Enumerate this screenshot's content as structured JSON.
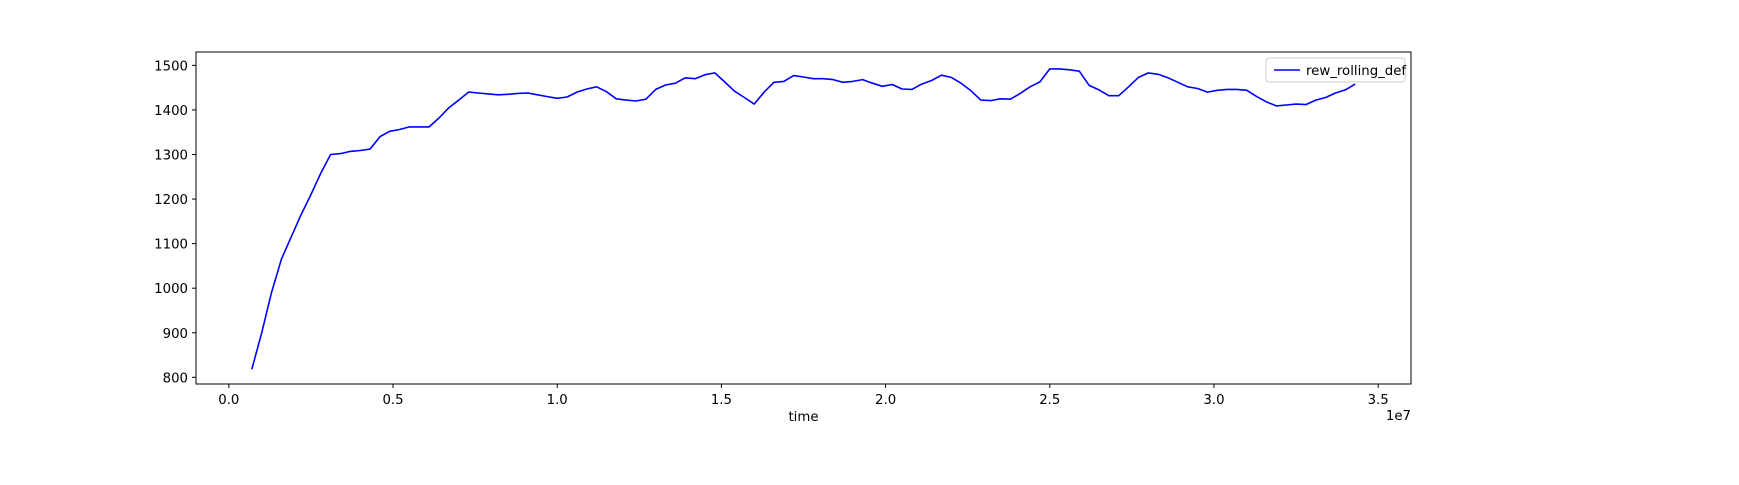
{
  "chart_data": {
    "type": "line",
    "title": "",
    "xlabel": "time",
    "ylabel": "",
    "x_offset_label": "1e7",
    "x_scale": 10000000,
    "xlim": [
      -0.1,
      3.6
    ],
    "ylim": [
      785,
      1530
    ],
    "x_ticks": [
      0.0,
      0.5,
      1.0,
      1.5,
      2.0,
      2.5,
      3.0,
      3.5
    ],
    "x_tick_labels": [
      "0.0",
      "0.5",
      "1.0",
      "1.5",
      "2.0",
      "2.5",
      "3.0",
      "3.5"
    ],
    "y_ticks": [
      800,
      900,
      1000,
      1100,
      1200,
      1300,
      1400,
      1500
    ],
    "y_tick_labels": [
      "800",
      "900",
      "1000",
      "1100",
      "1200",
      "1300",
      "1400",
      "1500"
    ],
    "grid": false,
    "legend_position": "top-right",
    "series": [
      {
        "name": "rew_rolling_def",
        "color": "#0000ff",
        "x": [
          0.07,
          0.1,
          0.13,
          0.16,
          0.19,
          0.22,
          0.25,
          0.28,
          0.31,
          0.34,
          0.37,
          0.4,
          0.43,
          0.46,
          0.49,
          0.52,
          0.55,
          0.58,
          0.61,
          0.64,
          0.67,
          0.7,
          0.73,
          0.76,
          0.79,
          0.82,
          0.85,
          0.88,
          0.91,
          0.94,
          0.97,
          1.0,
          1.03,
          1.06,
          1.09,
          1.12,
          1.15,
          1.18,
          1.21,
          1.24,
          1.27,
          1.3,
          1.33,
          1.36,
          1.39,
          1.42,
          1.45,
          1.48,
          1.51,
          1.54,
          1.57,
          1.6,
          1.63,
          1.66,
          1.69,
          1.72,
          1.75,
          1.78,
          1.81,
          1.84,
          1.87,
          1.9,
          1.93,
          1.96,
          1.99,
          2.02,
          2.05,
          2.08,
          2.11,
          2.14,
          2.17,
          2.2,
          2.23,
          2.26,
          2.29,
          2.32,
          2.35,
          2.38,
          2.41,
          2.44,
          2.47,
          2.5,
          2.53,
          2.56,
          2.59,
          2.62,
          2.65,
          2.68,
          2.71,
          2.74,
          2.77,
          2.8,
          2.83,
          2.86,
          2.89,
          2.92,
          2.95,
          2.98,
          3.01,
          3.04,
          3.07,
          3.1,
          3.13,
          3.16,
          3.19,
          3.22,
          3.25,
          3.28,
          3.31,
          3.34,
          3.37,
          3.4,
          3.43
        ],
        "y": [
          818,
          900,
          990,
          1065,
          1115,
          1165,
          1210,
          1258,
          1300,
          1302,
          1307,
          1309,
          1312,
          1340,
          1352,
          1356,
          1362,
          1362,
          1362,
          1382,
          1405,
          1422,
          1440,
          1438,
          1436,
          1434,
          1435,
          1437,
          1438,
          1434,
          1430,
          1426,
          1429,
          1440,
          1447,
          1452,
          1441,
          1425,
          1422,
          1420,
          1424,
          1446,
          1456,
          1460,
          1472,
          1470,
          1479,
          1483,
          1463,
          1442,
          1428,
          1413,
          1440,
          1462,
          1464,
          1477,
          1474,
          1470,
          1470,
          1468,
          1462,
          1464,
          1468,
          1460,
          1453,
          1457,
          1447,
          1446,
          1458,
          1466,
          1478,
          1473,
          1460,
          1443,
          1422,
          1421,
          1425,
          1424,
          1437,
          1452,
          1463,
          1492,
          1492,
          1490,
          1487,
          1455,
          1445,
          1432,
          1432,
          1452,
          1473,
          1483,
          1480,
          1472,
          1462,
          1452,
          1448,
          1440,
          1444,
          1446,
          1446,
          1444,
          1430,
          1418,
          1409,
          1411,
          1413,
          1412,
          1422,
          1428,
          1438,
          1445,
          1458
        ]
      }
    ]
  }
}
